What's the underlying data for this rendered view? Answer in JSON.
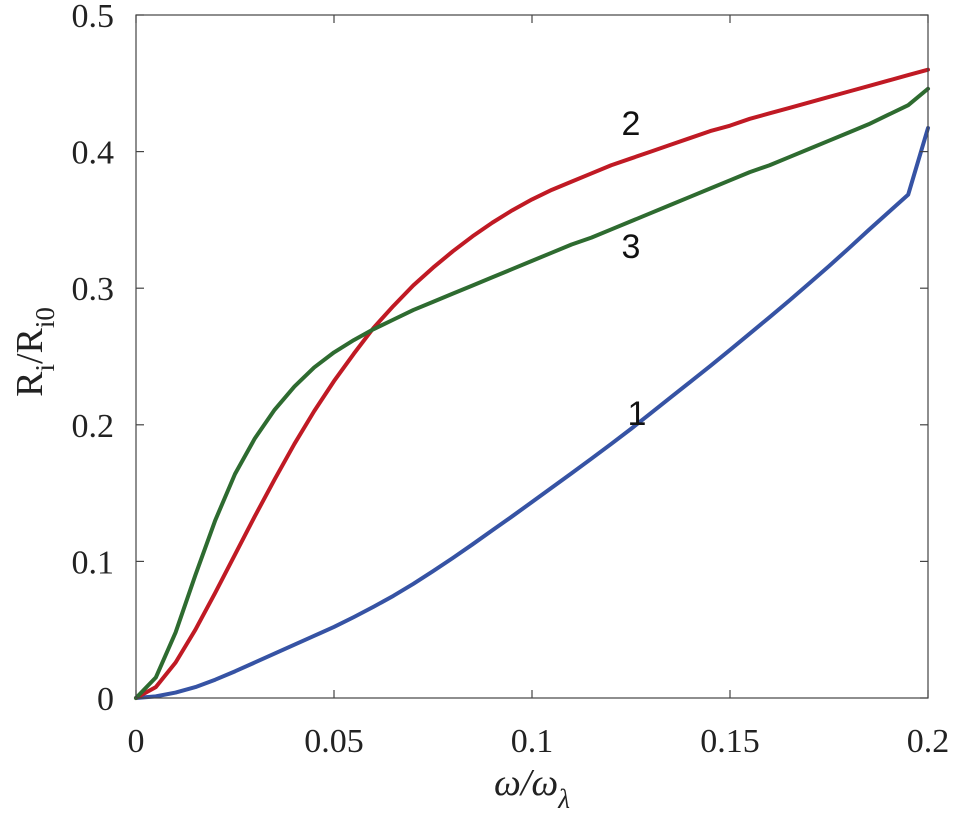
{
  "chart_data": {
    "type": "line",
    "xlabel": {
      "main": "ω/ω",
      "sub": "λ"
    },
    "ylabel": {
      "r1": "R",
      "s1": "i",
      "slash": "/R",
      "s2": "i0"
    },
    "xlim": [
      0,
      0.2
    ],
    "ylim": [
      0,
      0.5
    ],
    "xticks": [
      0,
      0.05,
      0.1,
      0.15,
      0.2
    ],
    "xtick_labels": [
      "0",
      "0.05",
      "0.1",
      "0.15",
      "0.2"
    ],
    "yticks": [
      0,
      0.1,
      0.2,
      0.3,
      0.4,
      0.5
    ],
    "ytick_labels": [
      "0",
      "0.1",
      "0.2",
      "0.3",
      "0.4",
      "0.5"
    ],
    "grid": false,
    "series": [
      {
        "label": "1",
        "color": "#3653a4",
        "x": [
          0,
          0.005,
          0.01,
          0.015,
          0.02,
          0.025,
          0.03,
          0.035,
          0.04,
          0.045,
          0.05,
          0.055,
          0.06,
          0.065,
          0.07,
          0.075,
          0.08,
          0.085,
          0.09,
          0.095,
          0.1,
          0.105,
          0.11,
          0.115,
          0.12,
          0.125,
          0.13,
          0.135,
          0.14,
          0.145,
          0.15,
          0.155,
          0.16,
          0.165,
          0.17,
          0.175,
          0.18,
          0.185,
          0.19,
          0.195,
          0.2
        ],
        "y": [
          0,
          0.0012,
          0.004,
          0.008,
          0.0134,
          0.0195,
          0.026,
          0.0325,
          0.039,
          0.0455,
          0.052,
          0.0592,
          0.0668,
          0.0748,
          0.0835,
          0.0928,
          0.1025,
          0.1125,
          0.1228,
          0.133,
          0.1435,
          0.154,
          0.1645,
          0.1752,
          0.186,
          0.197,
          0.2085,
          0.22,
          0.2315,
          0.243,
          0.2548,
          0.2668,
          0.2788,
          0.291,
          0.3035,
          0.3162,
          0.3292,
          0.3425,
          0.3555,
          0.3685,
          0.4172
        ]
      },
      {
        "label": "2",
        "color": "#c01a24",
        "x": [
          0,
          0.005,
          0.01,
          0.015,
          0.02,
          0.025,
          0.03,
          0.035,
          0.04,
          0.045,
          0.05,
          0.055,
          0.06,
          0.065,
          0.07,
          0.075,
          0.08,
          0.085,
          0.09,
          0.095,
          0.1,
          0.105,
          0.11,
          0.115,
          0.12,
          0.125,
          0.13,
          0.135,
          0.14,
          0.145,
          0.15,
          0.155,
          0.16,
          0.165,
          0.17,
          0.175,
          0.18,
          0.185,
          0.19,
          0.195,
          0.2
        ],
        "y": [
          0,
          0.008,
          0.026,
          0.05,
          0.077,
          0.105,
          0.133,
          0.16,
          0.186,
          0.21,
          0.232,
          0.252,
          0.271,
          0.287,
          0.302,
          0.315,
          0.327,
          0.338,
          0.348,
          0.357,
          0.365,
          0.372,
          0.378,
          0.384,
          0.39,
          0.395,
          0.4,
          0.405,
          0.41,
          0.415,
          0.419,
          0.424,
          0.428,
          0.432,
          0.436,
          0.44,
          0.444,
          0.448,
          0.452,
          0.456,
          0.46
        ]
      },
      {
        "label": "3",
        "color": "#2e6b30",
        "x": [
          0,
          0.005,
          0.01,
          0.015,
          0.02,
          0.025,
          0.03,
          0.035,
          0.04,
          0.045,
          0.05,
          0.055,
          0.06,
          0.065,
          0.07,
          0.075,
          0.08,
          0.085,
          0.09,
          0.095,
          0.1,
          0.105,
          0.11,
          0.115,
          0.12,
          0.125,
          0.13,
          0.135,
          0.14,
          0.145,
          0.15,
          0.155,
          0.16,
          0.165,
          0.17,
          0.175,
          0.18,
          0.185,
          0.19,
          0.195,
          0.2
        ],
        "y": [
          0,
          0.015,
          0.048,
          0.09,
          0.13,
          0.164,
          0.19,
          0.211,
          0.228,
          0.242,
          0.253,
          0.262,
          0.27,
          0.277,
          0.284,
          0.29,
          0.296,
          0.302,
          0.308,
          0.314,
          0.32,
          0.326,
          0.332,
          0.337,
          0.343,
          0.349,
          0.355,
          0.361,
          0.367,
          0.373,
          0.379,
          0.385,
          0.39,
          0.396,
          0.402,
          0.408,
          0.414,
          0.42,
          0.427,
          0.434,
          0.446
        ]
      }
    ],
    "annotations": [
      {
        "text": "1",
        "x": 0.1265,
        "y": 0.2
      },
      {
        "text": "2",
        "x": 0.125,
        "y": 0.412
      },
      {
        "text": "3",
        "x": 0.125,
        "y": 0.322
      }
    ]
  }
}
